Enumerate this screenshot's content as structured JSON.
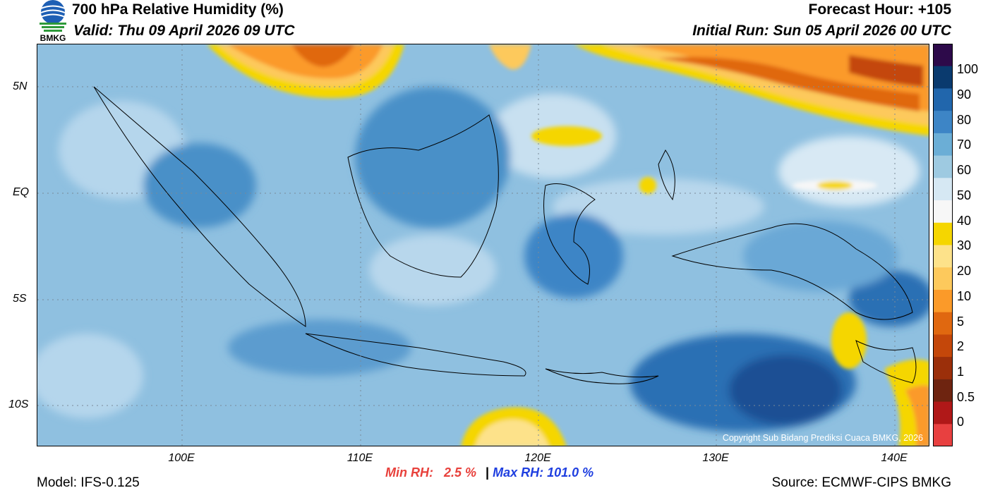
{
  "header": {
    "title": "700 hPa Relative Humidity (%)",
    "valid": "Valid: Thu 09 April 2026 09 UTC",
    "forecast_hour": "Forecast Hour: +105",
    "initial_run": "Initial Run: Sun 05 April 2026 00 UTC"
  },
  "logo": {
    "icon": "bmkg-logo-icon",
    "text": "BMKG"
  },
  "map": {
    "y_ticks": [
      "5N",
      "EQ",
      "5S",
      "10S"
    ],
    "x_ticks": [
      "100E",
      "110E",
      "120E",
      "130E",
      "140E"
    ],
    "copyright": "Copyright Sub Bidang Prediksi Cuaca BMKG, 2026"
  },
  "colorbar": {
    "labels": [
      "100",
      "90",
      "80",
      "70",
      "60",
      "50",
      "40",
      "30",
      "20",
      "10",
      "5",
      "2",
      "1",
      "0.5",
      "0"
    ],
    "colors": [
      "#2d0a4a",
      "#0a3a6e",
      "#2166ac",
      "#3d85c6",
      "#6baed6",
      "#9ecae1",
      "#d6e8f3",
      "#f7f7f7",
      "#f5d600",
      "#fde28a",
      "#fdc95c",
      "#fb9a29",
      "#e06810",
      "#c4470a",
      "#9b2f0a",
      "#6e2410",
      "#b01818",
      "#e84040"
    ]
  },
  "stats": {
    "min_label": "Min RH:",
    "min_value": "2.5 %",
    "separator": "|",
    "max_label": "Max RH:",
    "max_value": "101.0 %"
  },
  "footer": {
    "model": "Model: IFS-0.125",
    "source": "Source: ECMWF-CIPS BMKG"
  }
}
